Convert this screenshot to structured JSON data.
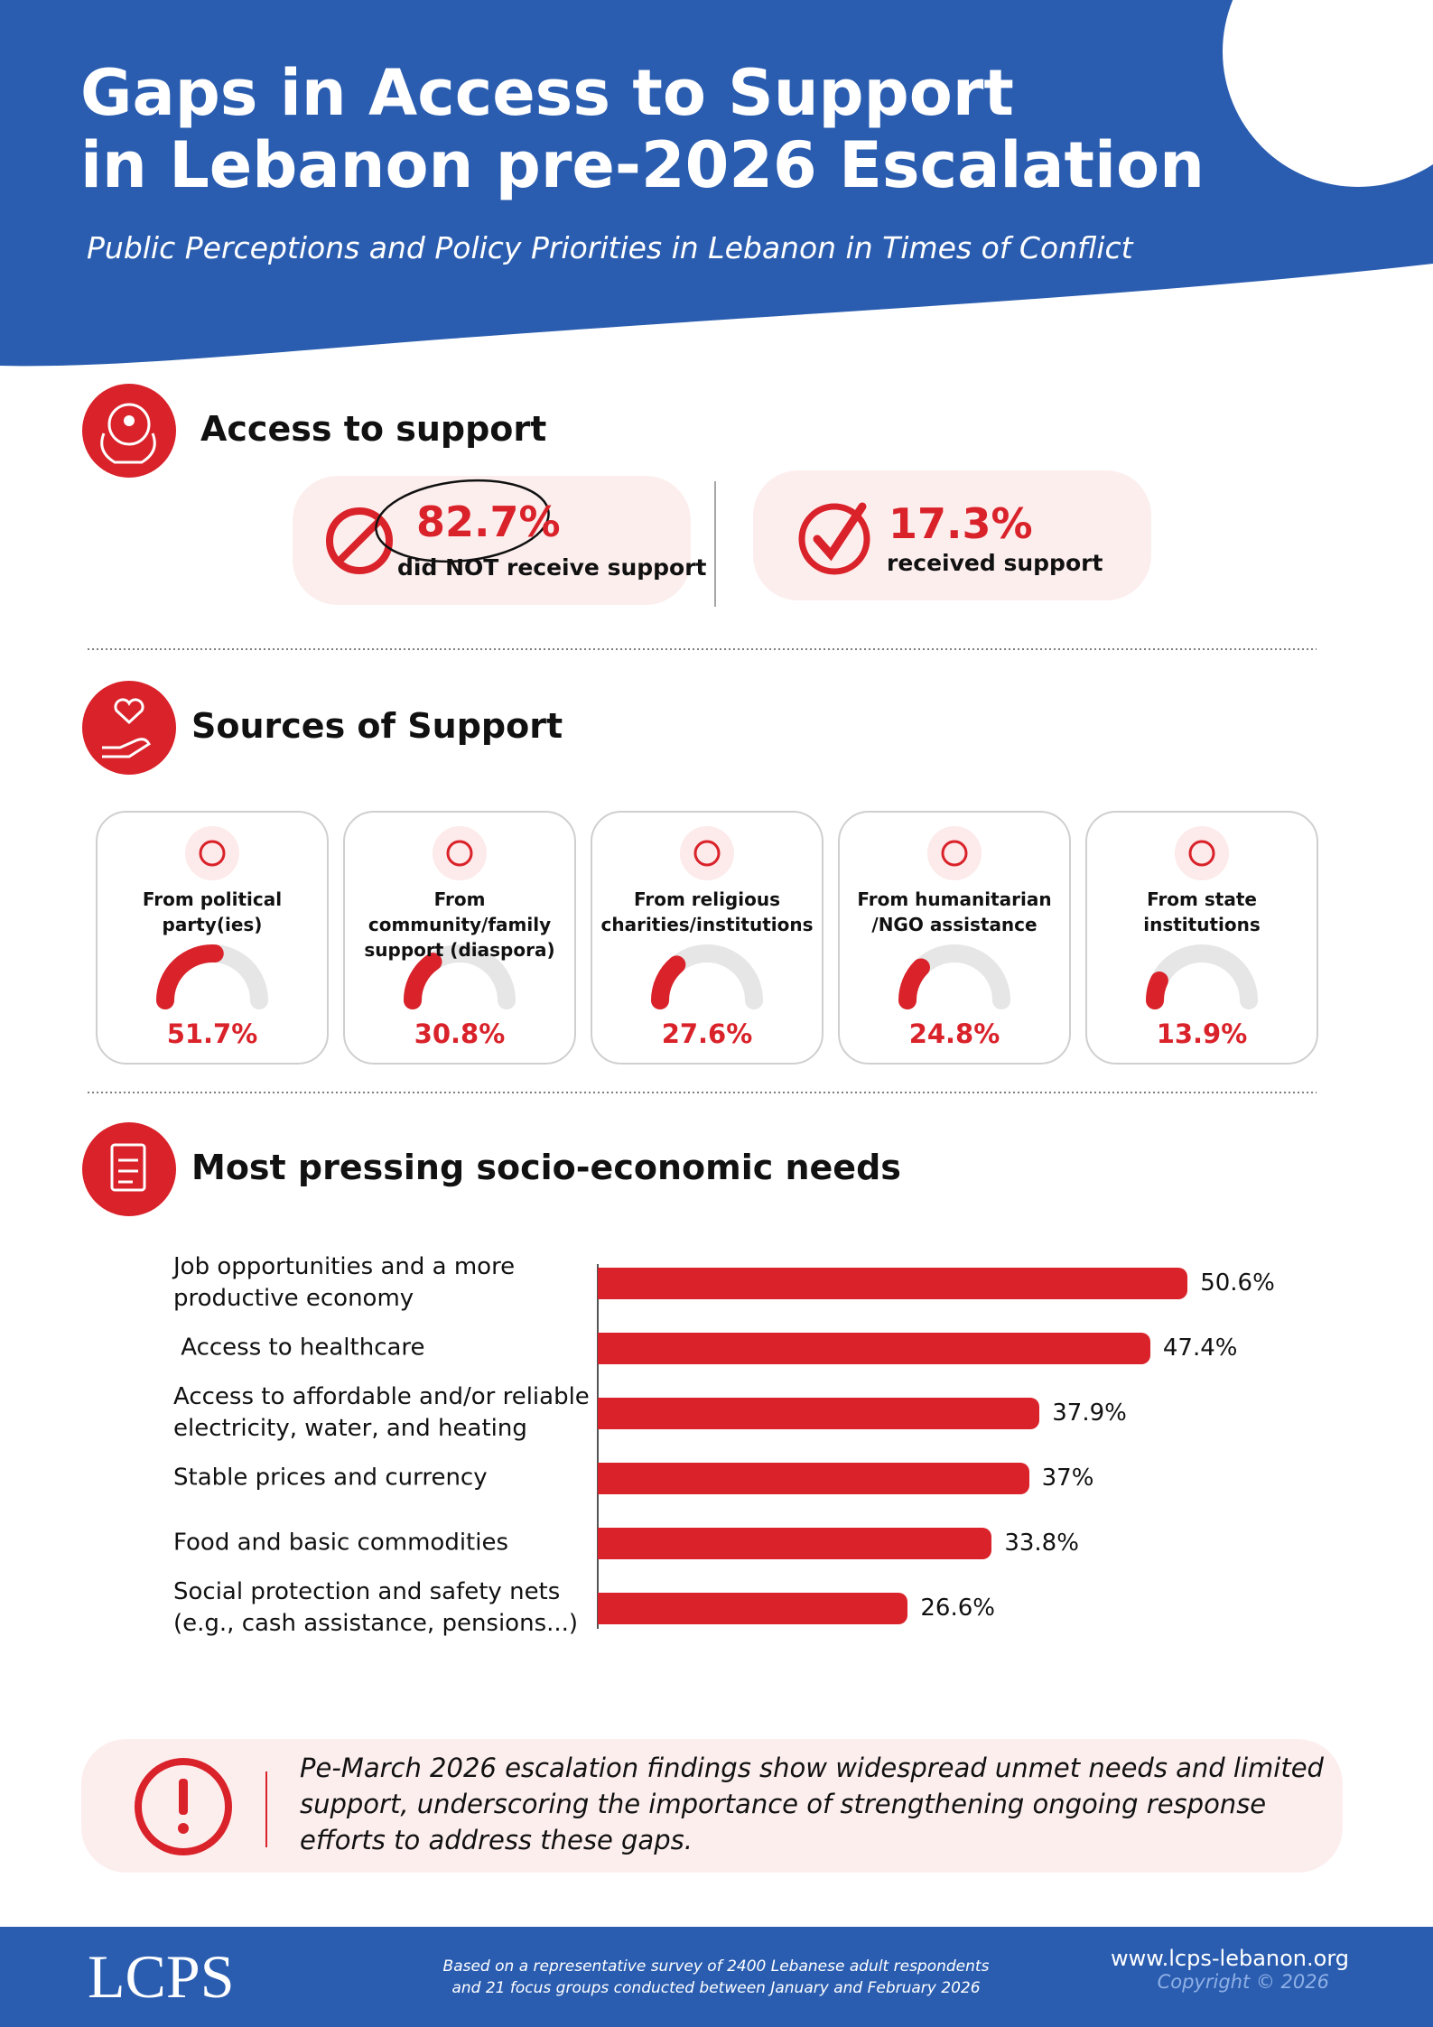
{
  "header": {
    "title_lines": [
      "Gaps in Access to Support",
      "in Lebanon pre-2026 Escalation"
    ],
    "subtitle": "Public Perceptions and Policy Priorities in Lebanon in Times of Conflict"
  },
  "access": {
    "heading": "Access to support",
    "stats": [
      {
        "value": "82.7%",
        "text": "did NOT receive support"
      },
      {
        "value": "17.3%",
        "text": "received support"
      }
    ]
  },
  "chart_data": [
    {
      "type": "gauge",
      "title": "Sources of Support",
      "categories": [
        "From political\nparty(ies)",
        "From community/family\nsupport (diaspora)",
        "From religious\ncharities/institutions",
        "From humanitarian\n/NGO assistance",
        "From state\ninstitutions"
      ],
      "values": [
        51.7,
        30.8,
        27.6,
        24.8,
        13.9
      ],
      "value_labels": [
        "51.7%",
        "30.8%",
        "27.6%",
        "24.8%",
        "13.9%"
      ],
      "color": "#d9222a",
      "ylim": [
        0,
        100
      ]
    },
    {
      "type": "bar",
      "orientation": "horizontal",
      "title": "Most pressing socio-economic needs",
      "categories": [
        "Job opportunities and a more\nproductive economy",
        " Access to healthcare",
        "Access to affordable and/or reliable\nelectricity, water, and heating",
        "Stable prices and currency",
        "Food and basic commodities",
        "Social protection and safety nets\n(e.g., cash assistance, pensions...)"
      ],
      "values": [
        50.6,
        47.4,
        37.9,
        37,
        33.8,
        26.6
      ],
      "value_labels": [
        "50.6%",
        "47.4%",
        "37.9%",
        "37%",
        "33.8%",
        "26.6%"
      ],
      "color": "#d9222a",
      "xlim": [
        0,
        55
      ]
    }
  ],
  "note": {
    "text": "Pe-March 2026 escalation findings show widespread unmet needs and limited\nsupport, underscoring the importance of strengthening ongoing response\nefforts to address these gaps."
  },
  "footer": {
    "logo": "LCPS",
    "source_lines": [
      "Based on a representative survey of 2400 Lebanese adult respondents",
      "and 21 focus groups conducted between January and February 2026"
    ],
    "url": "www.lcps-lebanon.org",
    "copyright": "Copyright © 2026"
  }
}
